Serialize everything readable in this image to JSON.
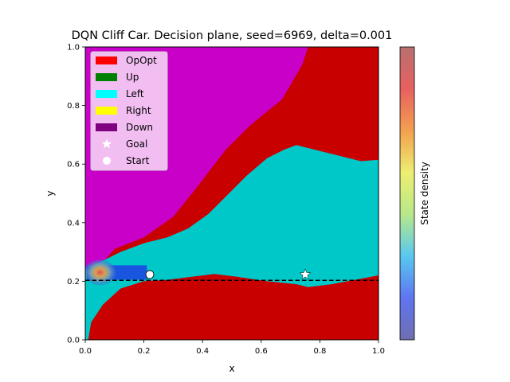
{
  "chart_data": {
    "type": "heatmap",
    "title": "DQN Cliff Car. Decision plane, seed=6969, delta=0.001",
    "xlabel": "x",
    "ylabel": "y",
    "xlim": [
      0,
      1
    ],
    "ylim": [
      0,
      1
    ],
    "xticks": [
      "0.0",
      "0.2",
      "0.4",
      "0.6",
      "0.8",
      "1.0"
    ],
    "yticks": [
      "0.0",
      "0.2",
      "0.4",
      "0.6",
      "0.8",
      "1.0"
    ],
    "legend_position": "upper-left",
    "legend": [
      {
        "label": "OpOpt",
        "color": "#ff0000",
        "marker": "patch"
      },
      {
        "label": "Up",
        "color": "#008000",
        "marker": "patch"
      },
      {
        "label": "Left",
        "color": "#00ffff",
        "marker": "patch"
      },
      {
        "label": "Right",
        "color": "#ffff00",
        "marker": "patch"
      },
      {
        "label": "Down",
        "color": "#800080",
        "marker": "patch"
      },
      {
        "label": "Goal",
        "color": "#ffffff",
        "marker": "star"
      },
      {
        "label": "Start",
        "color": "#ffffff",
        "marker": "circle"
      }
    ],
    "region_colors": {
      "opopt": "#c80000",
      "left": "#00c8c8",
      "down": "#c800c8"
    },
    "start": [
      0.22,
      0.223
    ],
    "goal": [
      0.75,
      0.223
    ],
    "cliff_line_y": 0.203,
    "colorbar_label": "State density",
    "colorbar_colors": [
      "#6f6fb0",
      "#5f75f0",
      "#59c8f0",
      "#b8e88a",
      "#eeee70",
      "#f2a050",
      "#e86060",
      "#b87070"
    ],
    "density_cluster": {
      "center": [
        0.05,
        0.23
      ],
      "extent_x": [
        0.005,
        0.21
      ]
    }
  }
}
